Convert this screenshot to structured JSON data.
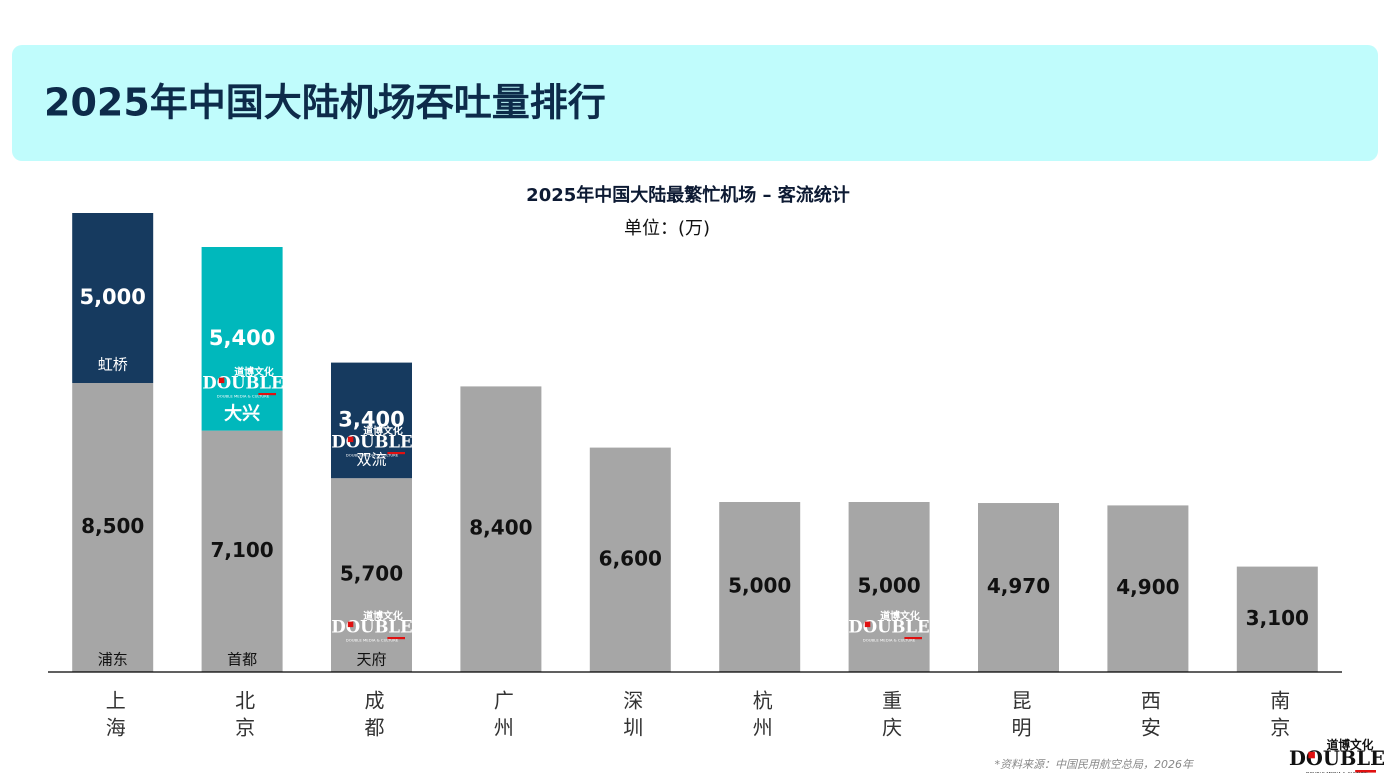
{
  "header": {
    "title": "2025年中国大陆机场吞吐量排行"
  },
  "chart_data": {
    "type": "bar",
    "stacked": true,
    "title": "2025年中国大陆最繁忙机场 – 客流统计",
    "subtitle": "单位：(万)",
    "categories": [
      "上海",
      "北京",
      "成都",
      "广州",
      "深圳",
      "杭州",
      "重庆",
      "昆明",
      "西安",
      "南京"
    ],
    "ylim": [
      0,
      13500
    ],
    "series": [
      {
        "color": "#a6a6a6",
        "values": [
          8500,
          7100,
          5700,
          8400,
          6600,
          5000,
          5000,
          4970,
          4900,
          3100
        ],
        "value_labels": [
          "8,500",
          "7,100",
          "5,700",
          "8,400",
          "6,600",
          "5,000",
          "5,000",
          "4,970",
          "4,900",
          "3,100"
        ],
        "segment_labels": [
          "浦东",
          "首都",
          "天府",
          null,
          null,
          null,
          null,
          null,
          null,
          null
        ]
      },
      {
        "colors": [
          "#163a5f",
          "#00b8bc",
          "#163a5f",
          null,
          null,
          null,
          null,
          null,
          null,
          null
        ],
        "values": [
          5000,
          5400,
          3400,
          null,
          null,
          null,
          null,
          null,
          null,
          null
        ],
        "value_labels": [
          "5,000",
          "5,400",
          "3,400",
          null,
          null,
          null,
          null,
          null,
          null,
          null
        ],
        "segment_labels": [
          "虹桥",
          "大兴",
          "双流",
          null,
          null,
          null,
          null,
          null,
          null,
          null
        ]
      }
    ]
  },
  "source": "*资料来源：中国民用航空总局，2026年",
  "logo": {
    "cn": "道博文化",
    "en": "DOUBLE",
    "tagline": "DOUBLE MEDIA & CULTURE"
  }
}
